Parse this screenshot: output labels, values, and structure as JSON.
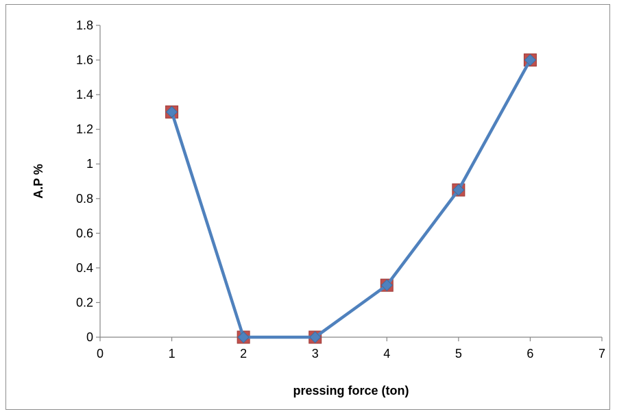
{
  "chart_data": {
    "type": "line",
    "title": "",
    "xlabel": "pressing force (ton)",
    "ylabel": "A.P %",
    "xlim": [
      0,
      7
    ],
    "ylim": [
      0,
      1.8
    ],
    "x_ticks": [
      "0",
      "1",
      "2",
      "3",
      "4",
      "5",
      "6",
      "7"
    ],
    "y_ticks": [
      "0",
      "0.2",
      "0.4",
      "0.6",
      "0.8",
      "1",
      "1.2",
      "1.4",
      "1.6",
      "1.8"
    ],
    "grid": false,
    "legend": "none",
    "series": [
      {
        "x": [
          1,
          2,
          3,
          4,
          5,
          6
        ],
        "y": [
          1.3,
          0,
          0,
          0.3,
          0.85,
          1.6
        ],
        "line_color": "#4f81bd",
        "marker_color": "#c0504d"
      }
    ]
  }
}
